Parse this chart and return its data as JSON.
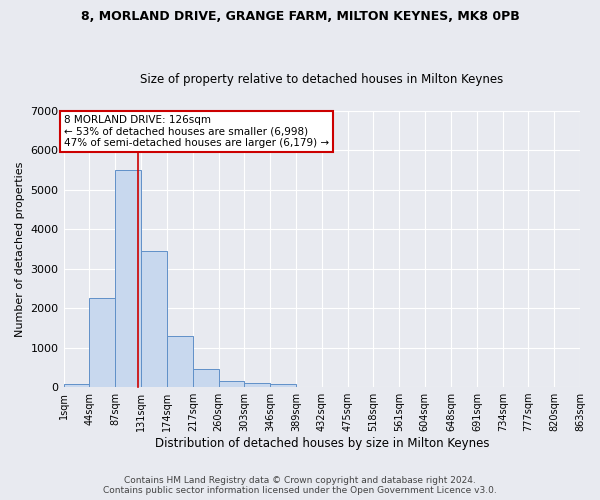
{
  "title1": "8, MORLAND DRIVE, GRANGE FARM, MILTON KEYNES, MK8 0PB",
  "title2": "Size of property relative to detached houses in Milton Keynes",
  "xlabel": "Distribution of detached houses by size in Milton Keynes",
  "ylabel": "Number of detached properties",
  "bar_color": "#c8d8ee",
  "bar_edge_color": "#6090c8",
  "bg_color": "#e8eaf0",
  "grid_color": "#ffffff",
  "bar_heights": [
    75,
    2265,
    5490,
    3440,
    1300,
    460,
    160,
    100,
    75,
    0,
    0,
    0,
    0,
    0,
    0,
    0,
    0,
    0,
    0,
    0
  ],
  "bin_edges": [
    1,
    44,
    87,
    131,
    174,
    217,
    260,
    303,
    346,
    389,
    432,
    475,
    518,
    561,
    604,
    648,
    691,
    734,
    777,
    820,
    863
  ],
  "x_tick_labels": [
    "1sqm",
    "44sqm",
    "87sqm",
    "131sqm",
    "174sqm",
    "217sqm",
    "260sqm",
    "303sqm",
    "346sqm",
    "389sqm",
    "432sqm",
    "475sqm",
    "518sqm",
    "561sqm",
    "604sqm",
    "648sqm",
    "691sqm",
    "734sqm",
    "777sqm",
    "820sqm",
    "863sqm"
  ],
  "ylim": [
    0,
    7000
  ],
  "yticks": [
    0,
    1000,
    2000,
    3000,
    4000,
    5000,
    6000,
    7000
  ],
  "red_line_x": 126,
  "annotation_text": "8 MORLAND DRIVE: 126sqm\n← 53% of detached houses are smaller (6,998)\n47% of semi-detached houses are larger (6,179) →",
  "annotation_box_color": "#ffffff",
  "annotation_box_edge_color": "#cc0000",
  "footer": "Contains HM Land Registry data © Crown copyright and database right 2024.\nContains public sector information licensed under the Open Government Licence v3.0."
}
